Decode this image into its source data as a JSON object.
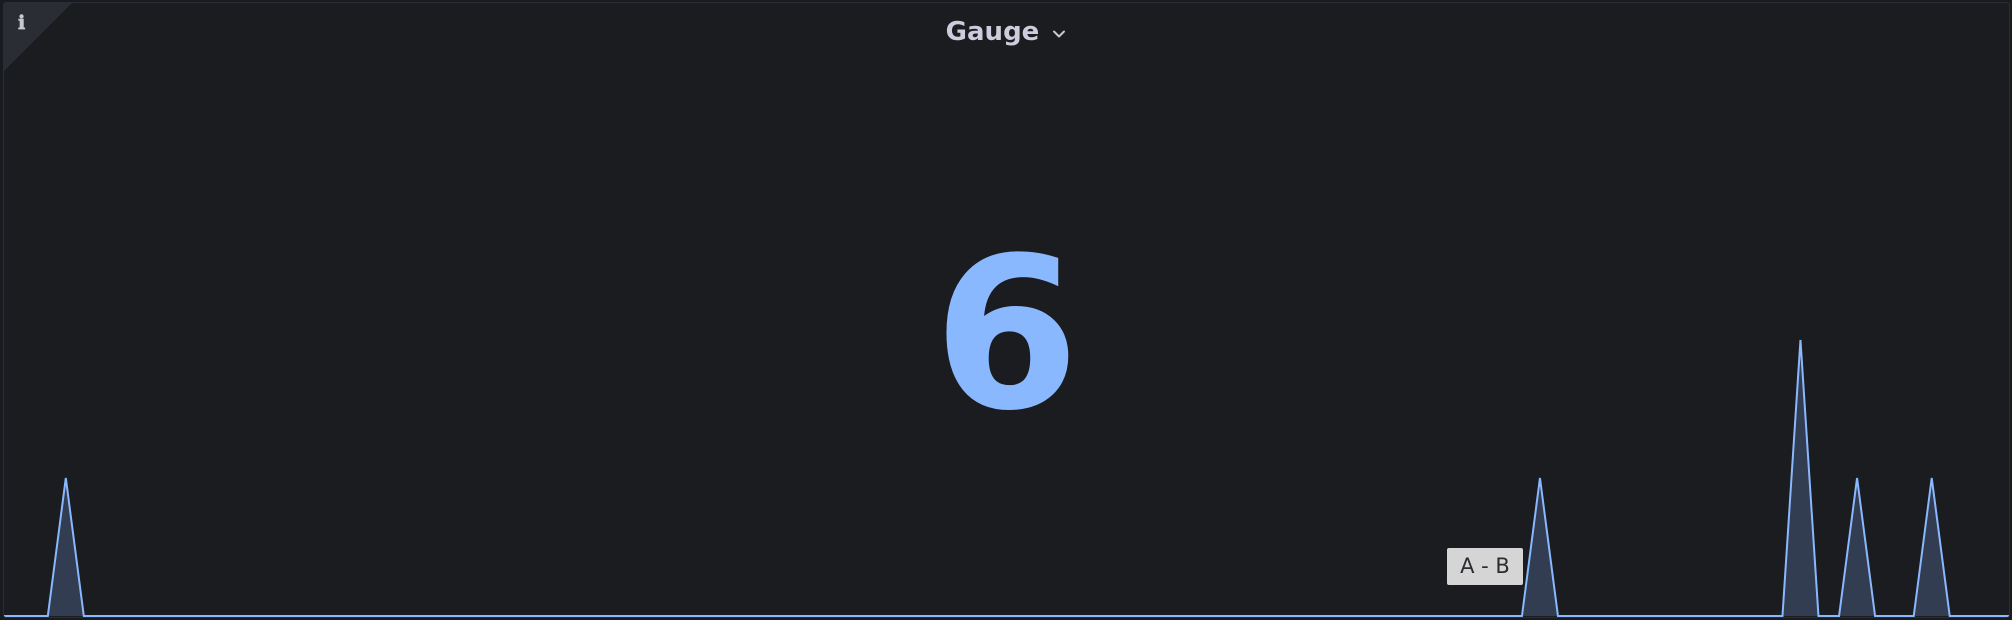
{
  "panel": {
    "title": "Gauge",
    "info_icon": "ℹ",
    "value": "6",
    "tooltip": "A - B",
    "accent_color": "#8ab8ff",
    "background_color": "#1a1c20"
  },
  "sparkline": {
    "baseline": 0,
    "peak_small": 1,
    "peak_large": 2,
    "spikes": [
      {
        "center_fraction": 0.0308,
        "level": 1
      },
      {
        "center_fraction": 0.7653,
        "level": 1
      },
      {
        "center_fraction": 0.8951,
        "level": 2
      },
      {
        "center_fraction": 0.9233,
        "level": 1
      },
      {
        "center_fraction": 0.9605,
        "level": 1
      }
    ]
  }
}
